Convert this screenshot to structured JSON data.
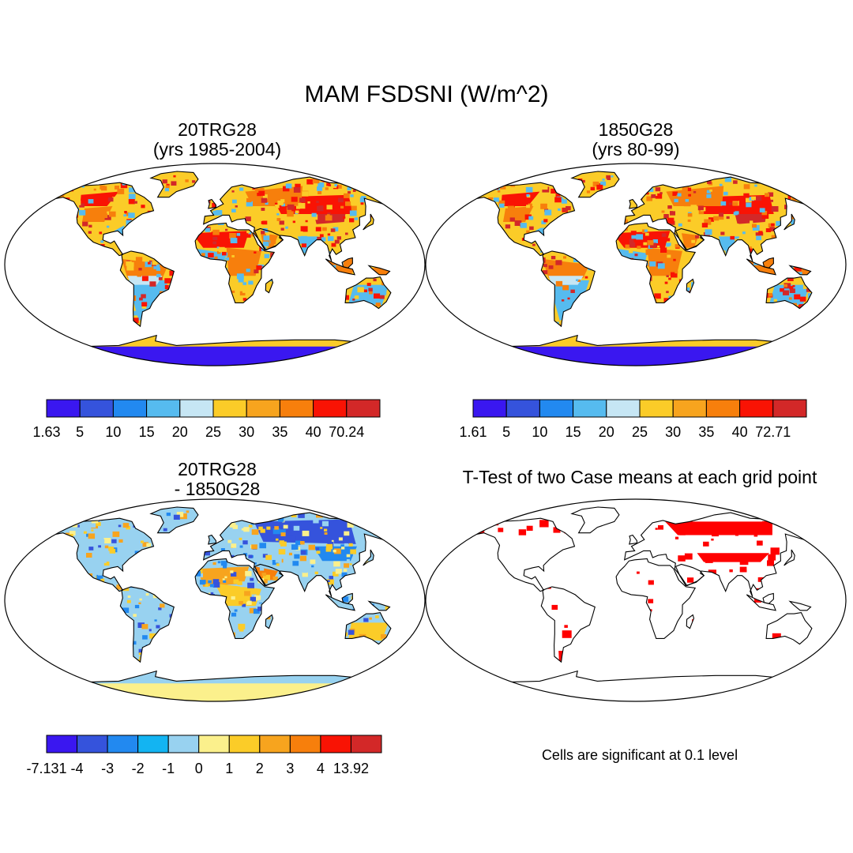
{
  "title": "MAM FSDSNI (W/m^2)",
  "panels": [
    {
      "title_line1": "20TRG28",
      "title_line2": "(yrs 1985-2004)",
      "colorbar": {
        "labels": [
          "1.63",
          "5",
          "10",
          "15",
          "20",
          "25",
          "30",
          "35",
          "40",
          "70.24"
        ],
        "colors": [
          "#3a17f0",
          "#3553dc",
          "#2289f0",
          "#56bbef",
          "#c6e6f4",
          "#fbcc28",
          "#f7a41e",
          "#f77f0c",
          "#f91304",
          "#d32828"
        ]
      }
    },
    {
      "title_line1": "1850G28",
      "title_line2": "(yrs 80-99)",
      "colorbar": {
        "labels": [
          "1.61",
          "5",
          "10",
          "15",
          "20",
          "25",
          "30",
          "35",
          "40",
          "72.71"
        ],
        "colors": [
          "#3a17f0",
          "#3553dc",
          "#2289f0",
          "#56bbef",
          "#c6e6f4",
          "#fbcc28",
          "#f7a41e",
          "#f77f0c",
          "#f91304",
          "#d32828"
        ]
      }
    },
    {
      "title_line1": "20TRG28",
      "title_line2": "- 1850G28",
      "colorbar": {
        "labels": [
          "-7.131",
          "-4",
          "-3",
          "-2",
          "-1",
          "0",
          "1",
          "2",
          "3",
          "4",
          "13.92"
        ],
        "colors": [
          "#3a17f0",
          "#3553dc",
          "#2289f0",
          "#13b4f2",
          "#98d2f0",
          "#fbf08c",
          "#fbcc28",
          "#f7a41e",
          "#f77f0c",
          "#f91304",
          "#d32828"
        ]
      }
    },
    {
      "title_line1": "T-Test of two Case means at each grid point",
      "note": "Cells are significant at 0.1 level",
      "significant_color": "#ff0000"
    }
  ]
}
